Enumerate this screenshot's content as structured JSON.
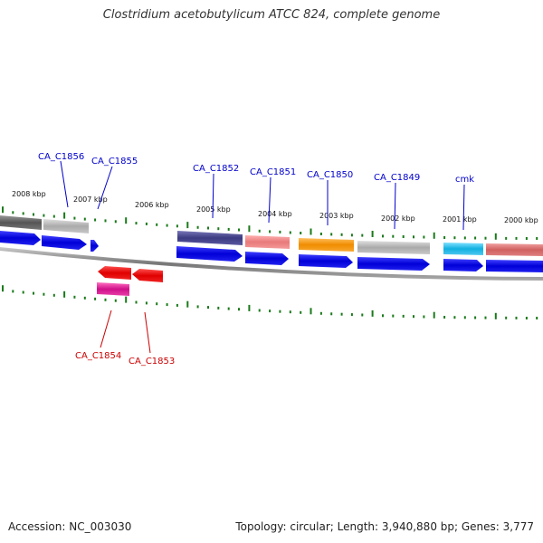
{
  "title": "Clostridium acetobutylicum ATCC 824, complete genome",
  "footer": {
    "accession": "Accession: NC_003030",
    "summary": "Topology: circular; Length: 3,940,880 bp; Genes: 3,777"
  },
  "colors": {
    "forward_label": "#0000cc",
    "reverse_label": "#cc0000",
    "cds_forward": "#0000e6",
    "cds_reverse": "#e60000",
    "tick": "#1a7a1a",
    "backbone": "#888888"
  },
  "tick_labels": [
    "2008 kbp",
    "2007 kbp",
    "2006 kbp",
    "2005 kbp",
    "2004 kbp",
    "2003 kbp",
    "2002 kbp",
    "2001 kbp",
    "2000 kbp"
  ],
  "forward_genes": [
    {
      "label": "CA_C1856"
    },
    {
      "label": "CA_C1855"
    },
    {
      "label": "CA_C1852"
    },
    {
      "label": "CA_C1851"
    },
    {
      "label": "CA_C1850"
    },
    {
      "label": "CA_C1849"
    },
    {
      "label": "cmk"
    }
  ],
  "reverse_genes": [
    {
      "label": "CA_C1854"
    },
    {
      "label": "CA_C1853"
    }
  ]
}
